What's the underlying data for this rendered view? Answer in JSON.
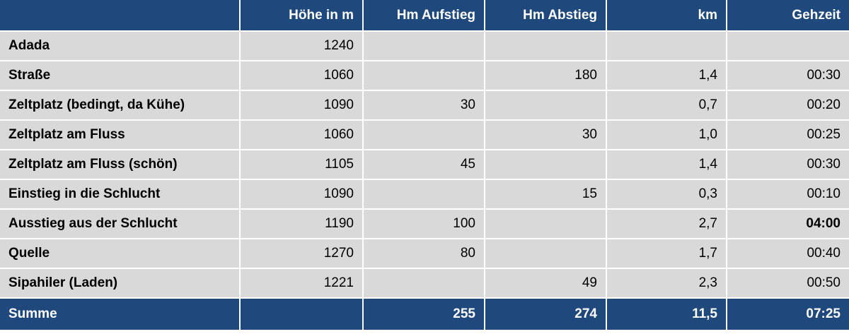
{
  "table": {
    "headers": [
      "",
      "Höhe in m",
      "Hm Aufstieg",
      "Hm Abstieg",
      "km",
      "Gehzeit"
    ],
    "rows": [
      {
        "name": "Adada",
        "hoehe": "1240",
        "aufstieg": "",
        "abstieg": "",
        "km": "",
        "gehzeit": ""
      },
      {
        "name": "Straße",
        "hoehe": "1060",
        "aufstieg": "",
        "abstieg": "180",
        "km": "1,4",
        "gehzeit": "00:30"
      },
      {
        "name": "Zeltplatz (bedingt, da Kühe)",
        "hoehe": "1090",
        "aufstieg": "30",
        "abstieg": "",
        "km": "0,7",
        "gehzeit": "00:20"
      },
      {
        "name": "Zeltplatz am Fluss",
        "hoehe": "1060",
        "aufstieg": "",
        "abstieg": "30",
        "km": "1,0",
        "gehzeit": "00:25"
      },
      {
        "name": "Zeltplatz am Fluss (schön)",
        "hoehe": "1105",
        "aufstieg": "45",
        "abstieg": "",
        "km": "1,4",
        "gehzeit": "00:30"
      },
      {
        "name": "Einstieg in die Schlucht",
        "hoehe": "1090",
        "aufstieg": "",
        "abstieg": "15",
        "km": "0,3",
        "gehzeit": "00:10"
      },
      {
        "name": "Ausstieg aus der Schlucht",
        "hoehe": "1190",
        "aufstieg": "100",
        "abstieg": "",
        "km": "2,7",
        "gehzeit": "04:00"
      },
      {
        "name": "Quelle",
        "hoehe": "1270",
        "aufstieg": "80",
        "abstieg": "",
        "km": "1,7",
        "gehzeit": "00:40"
      },
      {
        "name": "Sipahiler (Laden)",
        "hoehe": "1221",
        "aufstieg": "",
        "abstieg": "49",
        "km": "2,3",
        "gehzeit": "00:50"
      }
    ],
    "summary": {
      "label": "Summe",
      "hoehe": "",
      "aufstieg": "255",
      "abstieg": "274",
      "km": "11,5",
      "gehzeit": "07:25"
    }
  },
  "colors": {
    "header_background": "#1f497d",
    "header_text": "#ffffff",
    "body_background": "#d9d9d9",
    "body_text": "#000000",
    "grid_lines": "#ffffff"
  }
}
